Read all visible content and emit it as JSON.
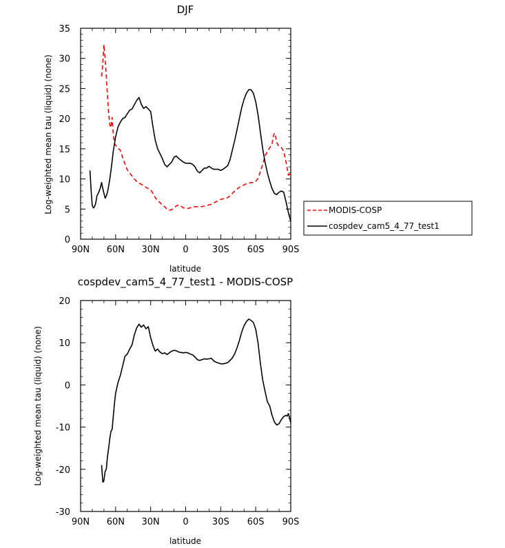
{
  "chart_data": [
    {
      "type": "line",
      "title": "DJF",
      "xlabel": "latitude",
      "ylabel": "Log-weighted mean tau (liquid) (none)",
      "xlim": [
        90,
        -90
      ],
      "ylim": [
        0,
        35
      ],
      "x_ticks": [
        90,
        60,
        30,
        0,
        -30,
        -60,
        -90
      ],
      "x_tick_labels": [
        "90N",
        "60N",
        "30N",
        "0",
        "30S",
        "60S",
        "90S"
      ],
      "y_ticks": [
        0,
        5,
        10,
        15,
        20,
        25,
        30,
        35
      ],
      "y_tick_labels": [
        "0",
        "5",
        "10",
        "15",
        "20",
        "25",
        "30",
        "35"
      ],
      "grid": false,
      "legend_position": "right of plot, outside",
      "series": [
        {
          "name": "MODIS-COSP",
          "color": "#ff0000",
          "dash": "dashed",
          "x": [
            72,
            71,
            70,
            69,
            68,
            67,
            66,
            65,
            64,
            63,
            62,
            61,
            60,
            58,
            56,
            54,
            52,
            50,
            48,
            46,
            44,
            42,
            40,
            38,
            36,
            34,
            32,
            30,
            28,
            26,
            24,
            22,
            20,
            18,
            16,
            14,
            12,
            10,
            8,
            6,
            4,
            2,
            0,
            -2,
            -4,
            -6,
            -8,
            -10,
            -12,
            -14,
            -16,
            -18,
            -20,
            -22,
            -24,
            -26,
            -28,
            -30,
            -32,
            -34,
            -36,
            -38,
            -40,
            -42,
            -44,
            -46,
            -48,
            -50,
            -52,
            -54,
            -56,
            -58,
            -60,
            -62,
            -64,
            -66,
            -68,
            -70,
            -72,
            -74,
            -75,
            -76,
            -77,
            -78,
            -80,
            -82,
            -84,
            -86,
            -88,
            -89,
            -90
          ],
          "y": [
            27,
            29,
            32.3,
            30,
            27,
            24,
            21,
            19,
            18.5,
            20.2,
            17.5,
            16,
            15.6,
            15.1,
            14.8,
            13.6,
            12.5,
            11.5,
            11,
            10.5,
            10,
            9.6,
            9.3,
            9.1,
            8.9,
            8.6,
            8.4,
            8.2,
            7.6,
            6.9,
            6.4,
            6.1,
            5.6,
            5.4,
            5,
            4.8,
            4.9,
            5.2,
            5.5,
            5.7,
            5.5,
            5.2,
            5.1,
            5.1,
            5.2,
            5.3,
            5.4,
            5.4,
            5.4,
            5.4,
            5.5,
            5.6,
            5.7,
            5.8,
            6,
            6.2,
            6.4,
            6.6,
            6.7,
            6.7,
            6.9,
            7.2,
            7.6,
            8,
            8.3,
            8.6,
            8.8,
            9,
            9.2,
            9.3,
            9.4,
            9.4,
            9.6,
            10.1,
            11.2,
            12.4,
            13.8,
            14.5,
            15.2,
            15.7,
            17,
            17.6,
            17.1,
            16,
            15.4,
            15.2,
            14.6,
            12.8,
            10.6,
            10.8,
            10.6
          ]
        },
        {
          "name": "cospdev_cam5_4_77_test1",
          "color": "#000000",
          "dash": "solid",
          "x": [
            82,
            81,
            80,
            79,
            78,
            77,
            76,
            75,
            74,
            73,
            72,
            71,
            70,
            69,
            68,
            67,
            66,
            65,
            64,
            63,
            62,
            61,
            60,
            58,
            56,
            54,
            52,
            50,
            48,
            46,
            44,
            42,
            40,
            38,
            36,
            34,
            32,
            30,
            28,
            26,
            24,
            22,
            20,
            18,
            16,
            14,
            12,
            10,
            8,
            6,
            4,
            2,
            0,
            -2,
            -4,
            -6,
            -8,
            -10,
            -12,
            -14,
            -16,
            -18,
            -20,
            -22,
            -24,
            -26,
            -28,
            -30,
            -32,
            -34,
            -36,
            -38,
            -40,
            -42,
            -44,
            -46,
            -48,
            -50,
            -52,
            -54,
            -56,
            -58,
            -60,
            -62,
            -64,
            -66,
            -68,
            -70,
            -72,
            -74,
            -76,
            -78,
            -80,
            -82,
            -84,
            -86,
            -88,
            -90
          ],
          "y": [
            11.4,
            8,
            5.6,
            5.2,
            5.4,
            6,
            7.2,
            7.6,
            8,
            8.6,
            9.4,
            8.4,
            7.6,
            6.8,
            7.2,
            7.8,
            8.8,
            10,
            11.4,
            13,
            14.6,
            15.8,
            17,
            18.6,
            19.4,
            20,
            20.2,
            20.8,
            21.4,
            21.6,
            22.3,
            23,
            23.5,
            22.4,
            21.7,
            22,
            21.6,
            21.2,
            18.6,
            16.4,
            15,
            14.2,
            13.4,
            12.4,
            12,
            12.4,
            12.8,
            13.6,
            13.8,
            13.4,
            13.1,
            12.8,
            12.6,
            12.6,
            12.6,
            12.4,
            12,
            11.3,
            11,
            11.4,
            11.8,
            11.8,
            12.1,
            11.8,
            11.6,
            11.6,
            11.6,
            11.4,
            11.6,
            11.9,
            12.2,
            13.2,
            14.8,
            16.4,
            18.2,
            20,
            21.8,
            23.2,
            24.2,
            24.8,
            24.8,
            24.2,
            22.8,
            20.6,
            17.8,
            15,
            12.8,
            11,
            9.6,
            8.4,
            7.6,
            7.4,
            7.8,
            8,
            7.8,
            6.2,
            4.4,
            3
          ]
        }
      ]
    },
    {
      "type": "line",
      "title": "cospdev_cam5_4_77_test1 - MODIS-COSP",
      "xlabel": "latitude",
      "ylabel": "Log-weighted mean tau (liquid) (none)",
      "xlim": [
        90,
        -90
      ],
      "ylim": [
        -30,
        20
      ],
      "x_ticks": [
        90,
        60,
        30,
        0,
        -30,
        -60,
        -90
      ],
      "x_tick_labels": [
        "90N",
        "60N",
        "30N",
        "0",
        "30S",
        "60S",
        "90S"
      ],
      "y_ticks": [
        -30,
        -20,
        -10,
        0,
        10,
        20
      ],
      "y_tick_labels": [
        "-30",
        "-20",
        "-10",
        "0",
        "10",
        "20"
      ],
      "grid": false,
      "series": [
        {
          "color": "#000000",
          "dash": "solid",
          "x": [
            72,
            71,
            70.5,
            70,
            69,
            68,
            67,
            66,
            65,
            64,
            63,
            62,
            61,
            60,
            58,
            56,
            54,
            52,
            50,
            48,
            46,
            44,
            42,
            40,
            38,
            36,
            34,
            32,
            30,
            28,
            26,
            24,
            22,
            20,
            18,
            16,
            14,
            12,
            10,
            8,
            6,
            4,
            2,
            0,
            -2,
            -4,
            -6,
            -8,
            -10,
            -12,
            -14,
            -16,
            -18,
            -20,
            -22,
            -24,
            -26,
            -28,
            -30,
            -32,
            -34,
            -36,
            -38,
            -40,
            -42,
            -44,
            -46,
            -48,
            -50,
            -52,
            -54,
            -56,
            -58,
            -60,
            -62,
            -64,
            -66,
            -68,
            -70,
            -72,
            -74,
            -76,
            -78,
            -80,
            -82,
            -84,
            -86,
            -87,
            -88,
            -89,
            -90
          ],
          "y": [
            -19,
            -23,
            -23,
            -22.6,
            -20.5,
            -20,
            -17,
            -15,
            -12.7,
            -11,
            -10.5,
            -7.5,
            -4.5,
            -2,
            0.5,
            2.2,
            4.5,
            6.8,
            7.3,
            8.5,
            9.5,
            11.8,
            13.5,
            14.4,
            13.7,
            14.2,
            13.3,
            13.8,
            11.2,
            9.3,
            8,
            8.5,
            7.8,
            7.4,
            7.6,
            7.2,
            7.6,
            8,
            8.2,
            8.1,
            7.8,
            7.7,
            7.6,
            7.7,
            7.6,
            7.3,
            7.1,
            6.6,
            6,
            5.8,
            6,
            6.2,
            6.1,
            6.2,
            6.3,
            5.7,
            5.4,
            5.2,
            5,
            5,
            5.1,
            5.3,
            5.8,
            6.4,
            7.4,
            8.8,
            10.5,
            12.5,
            14,
            15,
            15.6,
            15.3,
            14.8,
            13.2,
            9.9,
            5.2,
            1.2,
            -1.5,
            -4,
            -5,
            -7.2,
            -8.8,
            -9.5,
            -9.2,
            -8.2,
            -7.5,
            -7.2,
            -7.4,
            -6.8,
            -7.8,
            -9
          ]
        }
      ]
    }
  ]
}
